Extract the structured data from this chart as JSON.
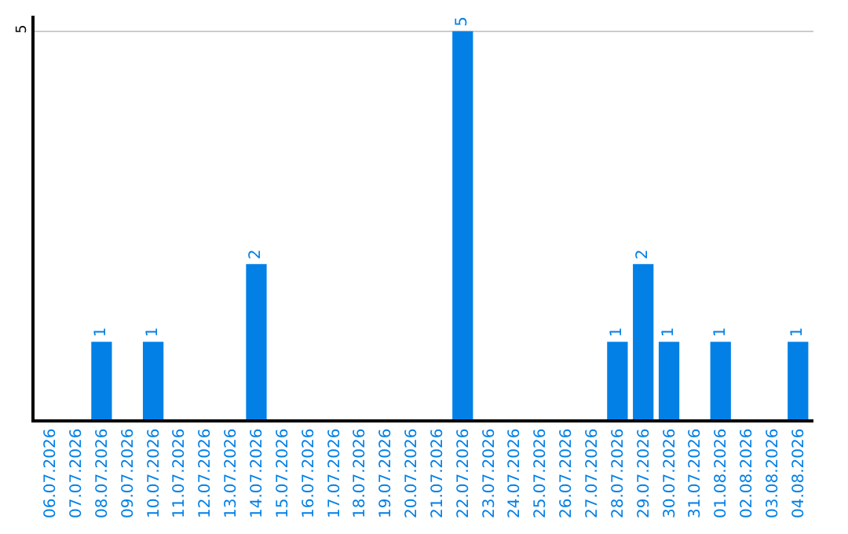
{
  "chart_data": {
    "type": "bar",
    "categories": [
      "06.07.2026",
      "07.07.2026",
      "08.07.2026",
      "09.07.2026",
      "10.07.2026",
      "11.07.2026",
      "12.07.2026",
      "13.07.2026",
      "14.07.2026",
      "15.07.2026",
      "16.07.2026",
      "17.07.2026",
      "18.07.2026",
      "19.07.2026",
      "20.07.2026",
      "21.07.2026",
      "22.07.2026",
      "23.07.2026",
      "24.07.2026",
      "25.07.2026",
      "26.07.2026",
      "27.07.2026",
      "28.07.2026",
      "29.07.2026",
      "30.07.2026",
      "31.07.2026",
      "01.08.2026",
      "02.08.2026",
      "03.08.2026",
      "04.08.2026"
    ],
    "values": [
      0,
      0,
      1,
      0,
      1,
      0,
      0,
      0,
      2,
      0,
      0,
      0,
      0,
      0,
      0,
      0,
      5,
      0,
      0,
      0,
      0,
      0,
      1,
      2,
      1,
      0,
      1,
      0,
      0,
      1
    ],
    "value_labels": [
      null,
      null,
      "1",
      null,
      "1",
      null,
      null,
      null,
      "2",
      null,
      null,
      null,
      null,
      null,
      null,
      null,
      "5",
      null,
      null,
      null,
      null,
      null,
      "1",
      "2",
      "1",
      null,
      "1",
      null,
      null,
      "1"
    ],
    "color": "#0380e6",
    "ylim": [
      0,
      5.2
    ],
    "yticks": [
      5
    ],
    "grid": "y"
  }
}
